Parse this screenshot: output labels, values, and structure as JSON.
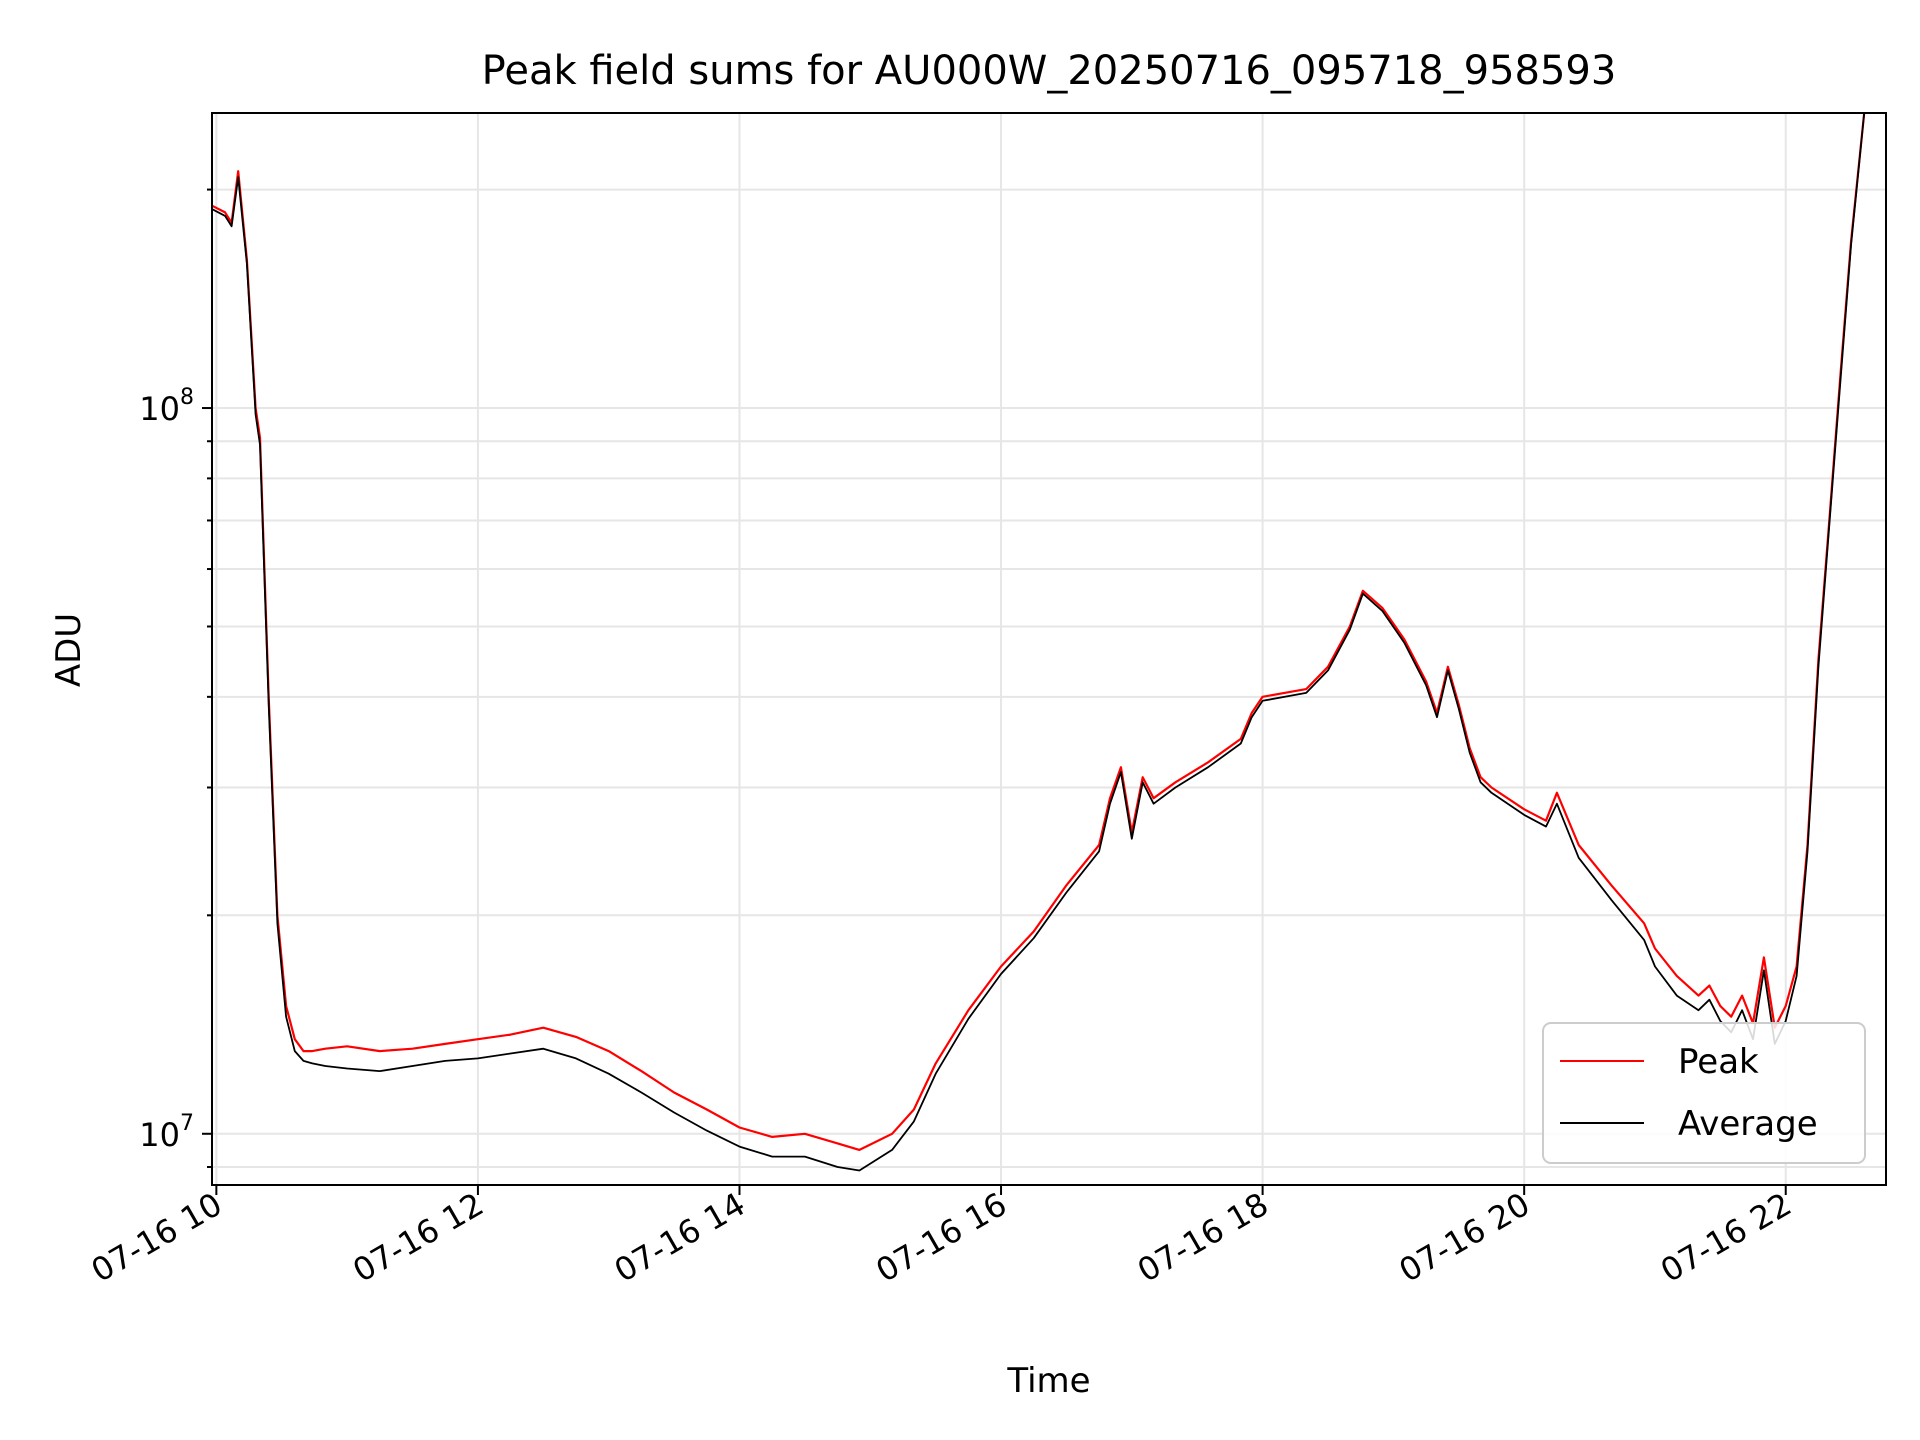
{
  "chart_data": {
    "type": "line",
    "title": "Peak field sums for AU000W_20250716_095718_958593",
    "xlabel": "Time",
    "ylabel": "ADU",
    "x_axis": {
      "type": "time",
      "range": [
        "2025-07-16 09:58",
        "2025-07-16 22:46"
      ],
      "ticks": [
        {
          "value": "2025-07-16 10:00",
          "label": "07-16 10"
        },
        {
          "value": "2025-07-16 12:00",
          "label": "07-16 12"
        },
        {
          "value": "2025-07-16 14:00",
          "label": "07-16 14"
        },
        {
          "value": "2025-07-16 16:00",
          "label": "07-16 16"
        },
        {
          "value": "2025-07-16 18:00",
          "label": "07-16 18"
        },
        {
          "value": "2025-07-16 20:00",
          "label": "07-16 20"
        },
        {
          "value": "2025-07-16 22:00",
          "label": "07-16 22"
        }
      ],
      "tick_rotation": 30
    },
    "y_axis": {
      "scale": "log",
      "range": [
        8500000,
        255000000
      ],
      "major_ticks": [
        {
          "value": 10000000,
          "base": "10",
          "exp": "7"
        },
        {
          "value": 100000000,
          "base": "10",
          "exp": "8"
        }
      ]
    },
    "grid": true,
    "legend_position": "lower-right",
    "series": [
      {
        "name": "Peak",
        "color": "#ff0000",
        "x": [
          "2025-07-16 09:58",
          "2025-07-16 10:04",
          "2025-07-16 10:07",
          "2025-07-16 10:10",
          "2025-07-16 10:14",
          "2025-07-16 10:18",
          "2025-07-16 10:20",
          "2025-07-16 10:24",
          "2025-07-16 10:28",
          "2025-07-16 10:32",
          "2025-07-16 10:36",
          "2025-07-16 10:40",
          "2025-07-16 10:44",
          "2025-07-16 10:50",
          "2025-07-16 11:00",
          "2025-07-16 11:15",
          "2025-07-16 11:30",
          "2025-07-16 11:45",
          "2025-07-16 12:00",
          "2025-07-16 12:15",
          "2025-07-16 12:30",
          "2025-07-16 12:45",
          "2025-07-16 13:00",
          "2025-07-16 13:15",
          "2025-07-16 13:30",
          "2025-07-16 13:45",
          "2025-07-16 14:00",
          "2025-07-16 14:15",
          "2025-07-16 14:30",
          "2025-07-16 14:45",
          "2025-07-16 14:55",
          "2025-07-16 15:10",
          "2025-07-16 15:20",
          "2025-07-16 15:30",
          "2025-07-16 15:45",
          "2025-07-16 16:00",
          "2025-07-16 16:15",
          "2025-07-16 16:30",
          "2025-07-16 16:45",
          "2025-07-16 16:50",
          "2025-07-16 16:55",
          "2025-07-16 17:00",
          "2025-07-16 17:05",
          "2025-07-16 17:10",
          "2025-07-16 17:20",
          "2025-07-16 17:35",
          "2025-07-16 17:50",
          "2025-07-16 17:55",
          "2025-07-16 18:00",
          "2025-07-16 18:20",
          "2025-07-16 18:30",
          "2025-07-16 18:40",
          "2025-07-16 18:46",
          "2025-07-16 18:55",
          "2025-07-16 19:05",
          "2025-07-16 19:15",
          "2025-07-16 19:20",
          "2025-07-16 19:25",
          "2025-07-16 19:30",
          "2025-07-16 19:35",
          "2025-07-16 19:40",
          "2025-07-16 19:45",
          "2025-07-16 20:00",
          "2025-07-16 20:10",
          "2025-07-16 20:15",
          "2025-07-16 20:25",
          "2025-07-16 20:40",
          "2025-07-16 20:55",
          "2025-07-16 21:00",
          "2025-07-16 21:10",
          "2025-07-16 21:20",
          "2025-07-16 21:25",
          "2025-07-16 21:30",
          "2025-07-16 21:35",
          "2025-07-16 21:40",
          "2025-07-16 21:45",
          "2025-07-16 21:50",
          "2025-07-16 21:55",
          "2025-07-16 22:00",
          "2025-07-16 22:05",
          "2025-07-16 22:10",
          "2025-07-16 22:15",
          "2025-07-16 22:20",
          "2025-07-16 22:25",
          "2025-07-16 22:30",
          "2025-07-16 22:36"
        ],
        "y": [
          190000000,
          186000000,
          180000000,
          212000000,
          160000000,
          100000000,
          91000000,
          40000000,
          20000000,
          15000000,
          13500000,
          13000000,
          13000000,
          13100000,
          13200000,
          13000000,
          13100000,
          13300000,
          13500000,
          13700000,
          14000000,
          13600000,
          13000000,
          12200000,
          11400000,
          10800000,
          10200000,
          9900000,
          10000000,
          9700000,
          9500000,
          10000000,
          10800000,
          12500000,
          14800000,
          17000000,
          19000000,
          22000000,
          25000000,
          29000000,
          32000000,
          26000000,
          31000000,
          29000000,
          30500000,
          32500000,
          35000000,
          38000000,
          40000000,
          41000000,
          44000000,
          50000000,
          56000000,
          53000000,
          48000000,
          42000000,
          38000000,
          44000000,
          39000000,
          34000000,
          31000000,
          30000000,
          28000000,
          27000000,
          29500000,
          25000000,
          22000000,
          19500000,
          18000000,
          16500000,
          15500000,
          16000000,
          15000000,
          14500000,
          15500000,
          14200000,
          17500000,
          14000000,
          15000000,
          17000000,
          25000000,
          45000000,
          70000000,
          110000000,
          170000000,
          255000000
        ]
      },
      {
        "name": "Average",
        "color": "#000000",
        "x": [
          "2025-07-16 09:58",
          "2025-07-16 10:04",
          "2025-07-16 10:07",
          "2025-07-16 10:10",
          "2025-07-16 10:14",
          "2025-07-16 10:18",
          "2025-07-16 10:20",
          "2025-07-16 10:24",
          "2025-07-16 10:28",
          "2025-07-16 10:32",
          "2025-07-16 10:36",
          "2025-07-16 10:40",
          "2025-07-16 10:44",
          "2025-07-16 10:50",
          "2025-07-16 11:00",
          "2025-07-16 11:15",
          "2025-07-16 11:30",
          "2025-07-16 11:45",
          "2025-07-16 12:00",
          "2025-07-16 12:15",
          "2025-07-16 12:30",
          "2025-07-16 12:45",
          "2025-07-16 13:00",
          "2025-07-16 13:15",
          "2025-07-16 13:30",
          "2025-07-16 13:45",
          "2025-07-16 14:00",
          "2025-07-16 14:15",
          "2025-07-16 14:30",
          "2025-07-16 14:45",
          "2025-07-16 14:55",
          "2025-07-16 15:10",
          "2025-07-16 15:20",
          "2025-07-16 15:30",
          "2025-07-16 15:45",
          "2025-07-16 16:00",
          "2025-07-16 16:15",
          "2025-07-16 16:30",
          "2025-07-16 16:45",
          "2025-07-16 16:50",
          "2025-07-16 16:55",
          "2025-07-16 17:00",
          "2025-07-16 17:05",
          "2025-07-16 17:10",
          "2025-07-16 17:20",
          "2025-07-16 17:35",
          "2025-07-16 17:50",
          "2025-07-16 17:55",
          "2025-07-16 18:00",
          "2025-07-16 18:20",
          "2025-07-16 18:30",
          "2025-07-16 18:40",
          "2025-07-16 18:46",
          "2025-07-16 18:55",
          "2025-07-16 19:05",
          "2025-07-16 19:15",
          "2025-07-16 19:20",
          "2025-07-16 19:25",
          "2025-07-16 19:30",
          "2025-07-16 19:35",
          "2025-07-16 19:40",
          "2025-07-16 19:45",
          "2025-07-16 20:00",
          "2025-07-16 20:10",
          "2025-07-16 20:15",
          "2025-07-16 20:25",
          "2025-07-16 20:40",
          "2025-07-16 20:55",
          "2025-07-16 21:00",
          "2025-07-16 21:10",
          "2025-07-16 21:20",
          "2025-07-16 21:25",
          "2025-07-16 21:30",
          "2025-07-16 21:35",
          "2025-07-16 21:40",
          "2025-07-16 21:45",
          "2025-07-16 21:50",
          "2025-07-16 21:55",
          "2025-07-16 22:00",
          "2025-07-16 22:05",
          "2025-07-16 22:10",
          "2025-07-16 22:15",
          "2025-07-16 22:20",
          "2025-07-16 22:25",
          "2025-07-16 22:30",
          "2025-07-16 22:36"
        ],
        "y": [
          188000000,
          184000000,
          178000000,
          208000000,
          158000000,
          98000000,
          89000000,
          39000000,
          19500000,
          14500000,
          13000000,
          12600000,
          12500000,
          12400000,
          12300000,
          12200000,
          12400000,
          12600000,
          12700000,
          12900000,
          13100000,
          12700000,
          12100000,
          11400000,
          10700000,
          10100000,
          9600000,
          9300000,
          9300000,
          9000000,
          8900000,
          9500000,
          10400000,
          12100000,
          14400000,
          16600000,
          18600000,
          21500000,
          24500000,
          28500000,
          31500000,
          25500000,
          30500000,
          28500000,
          30000000,
          32000000,
          34500000,
          37500000,
          39500000,
          40500000,
          43500000,
          49500000,
          55500000,
          52500000,
          47500000,
          41500000,
          37500000,
          43500000,
          38500000,
          33500000,
          30500000,
          29500000,
          27500000,
          26500000,
          28500000,
          24000000,
          21000000,
          18500000,
          17000000,
          15500000,
          14800000,
          15300000,
          14300000,
          13800000,
          14800000,
          13500000,
          16800000,
          13300000,
          14300000,
          16500000,
          24500000,
          44000000,
          69000000,
          108000000,
          168000000,
          255000000
        ]
      }
    ]
  }
}
